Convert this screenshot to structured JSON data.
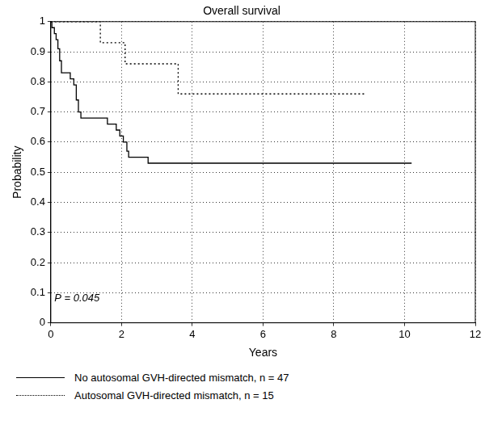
{
  "chart_data": {
    "type": "line",
    "title": "Overall survival",
    "x_label": "Years",
    "y_label": "Probability",
    "xlim": [
      0,
      12
    ],
    "xticks": [
      0,
      2,
      4,
      6,
      8,
      10,
      12
    ],
    "ylim": [
      0,
      1
    ],
    "yticks": [
      0,
      0.1,
      0.2,
      0.3,
      0.4,
      0.5,
      0.6,
      0.7,
      0.8,
      0.9,
      1
    ],
    "grid": true,
    "legend": "bottom",
    "annotations": [
      {
        "text": "P = 0.045",
        "x": 0.1,
        "y": 0.08
      }
    ],
    "series": [
      {
        "name": "No autosomal GVH-directed mismatch, n = 47",
        "color": "#000000",
        "line_style": "solid",
        "x": [
          0,
          0.03,
          0.1,
          0.15,
          0.2,
          0.25,
          0.3,
          0.55,
          0.65,
          0.72,
          0.78,
          0.85,
          1.6,
          1.85,
          1.95,
          2.05,
          2.15,
          2.2,
          2.75,
          10.2
        ],
        "values": [
          1,
          0.98,
          0.96,
          0.94,
          0.91,
          0.87,
          0.83,
          0.81,
          0.79,
          0.74,
          0.7,
          0.68,
          0.66,
          0.64,
          0.62,
          0.6,
          0.57,
          0.55,
          0.53,
          0.53
        ]
      },
      {
        "name": "Autosomal GVH-directed mismatch, n = 15",
        "color": "#000000",
        "line_style": "dotted",
        "x": [
          0,
          1.4,
          2.1,
          3.6,
          8.9
        ],
        "values": [
          1,
          0.93,
          0.86,
          0.76,
          0.76
        ]
      }
    ]
  }
}
